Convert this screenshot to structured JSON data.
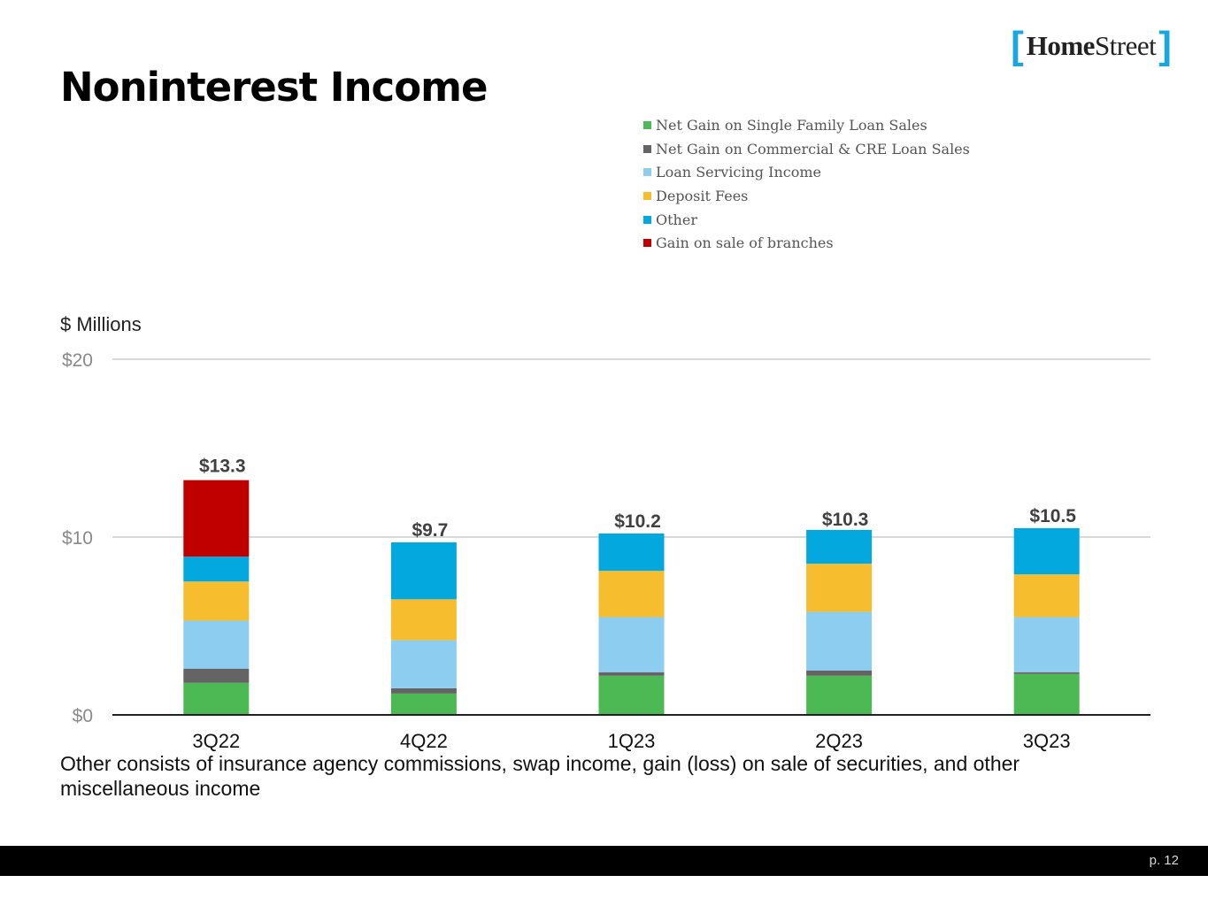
{
  "logo": {
    "left_bracket": "[",
    "word_bold": "Home",
    "word_light": "Street",
    "right_bracket": "]"
  },
  "title": "Noninterest Income",
  "units_label": "$ Millions",
  "colors": {
    "Net Gain on Single Family Loan Sales": "#4cb955",
    "Net Gain on Commercial & CRE Loan Sales": "#646464",
    "Loan Servicing Income": "#8ccdf0",
    "Deposit Fees": "#f6be2f",
    "Other": "#03a9de",
    "Gain on sale of branches": "#c00000"
  },
  "chart_data": {
    "type": "bar",
    "stacked": true,
    "title": "Noninterest Income",
    "ylabel": "$ Millions",
    "xlabel": "",
    "ylim": [
      0,
      20
    ],
    "yticks": [
      0,
      10,
      20
    ],
    "ytick_labels": [
      "$0",
      "$10",
      "$20"
    ],
    "grid": true,
    "legend_position": "top-right",
    "categories": [
      "3Q22",
      "4Q22",
      "1Q23",
      "2Q23",
      "3Q23"
    ],
    "series": [
      {
        "name": "Net Gain on Single Family Loan Sales",
        "values": [
          1.8,
          1.2,
          2.2,
          2.2,
          2.3
        ]
      },
      {
        "name": "Net Gain on Commercial & CRE Loan Sales",
        "values": [
          0.8,
          0.3,
          0.2,
          0.3,
          0.1
        ]
      },
      {
        "name": "Loan Servicing Income",
        "values": [
          2.7,
          2.7,
          3.1,
          3.3,
          3.1
        ]
      },
      {
        "name": "Deposit Fees",
        "values": [
          2.2,
          2.3,
          2.6,
          2.7,
          2.4
        ]
      },
      {
        "name": "Other",
        "values": [
          1.4,
          3.2,
          2.1,
          1.9,
          2.6
        ]
      },
      {
        "name": "Gain on sale of branches",
        "values": [
          4.3,
          0,
          0,
          0,
          0
        ]
      }
    ],
    "totals": [
      13.3,
      9.7,
      10.2,
      10.3,
      10.5
    ],
    "total_labels": [
      "$13.3",
      "$9.7",
      "$10.2",
      "$10.3",
      "$10.5"
    ]
  },
  "footnote": "Other consists of insurance agency commissions, swap income, gain (loss) on sale of securities, and other miscellaneous income",
  "page_number": "p. 12"
}
